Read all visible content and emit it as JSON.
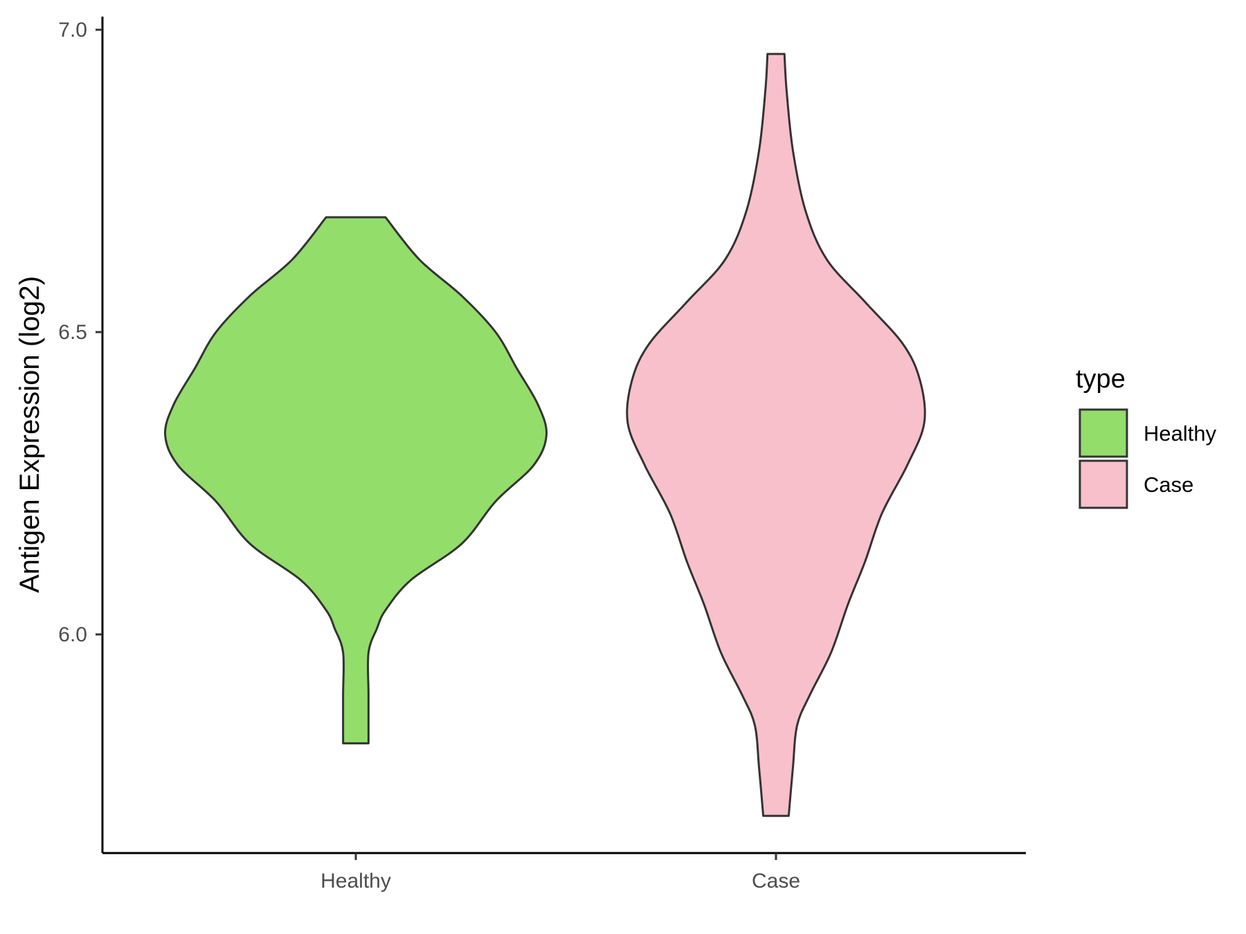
{
  "chart_data": {
    "type": "violin",
    "xlabel": "",
    "ylabel": "Antigen Expression (log2)",
    "categories": [
      "Healthy",
      "Case"
    ],
    "y_ticks": [
      "6.0",
      "6.5",
      "7.0"
    ],
    "ylim": [
      5.64,
      7.02
    ],
    "grid": false,
    "legend": {
      "title": "type",
      "position": "right",
      "entries": [
        {
          "label": "Healthy",
          "color": "#93DD6A"
        },
        {
          "label": "Case",
          "color": "#F8C0CB"
        }
      ]
    },
    "series": [
      {
        "category": "Healthy",
        "color": "#93DD6A",
        "min": 5.82,
        "max": 6.69,
        "density_profile": [
          {
            "y": 5.82,
            "half_width": 0.03
          },
          {
            "y": 5.9,
            "half_width": 0.03
          },
          {
            "y": 5.97,
            "half_width": 0.03
          },
          {
            "y": 6.01,
            "half_width": 0.05
          },
          {
            "y": 6.04,
            "half_width": 0.07
          },
          {
            "y": 6.09,
            "half_width": 0.13
          },
          {
            "y": 6.15,
            "half_width": 0.25
          },
          {
            "y": 6.22,
            "half_width": 0.33
          },
          {
            "y": 6.28,
            "half_width": 0.42
          },
          {
            "y": 6.33,
            "half_width": 0.45
          },
          {
            "y": 6.38,
            "half_width": 0.43
          },
          {
            "y": 6.44,
            "half_width": 0.38
          },
          {
            "y": 6.5,
            "half_width": 0.33
          },
          {
            "y": 6.56,
            "half_width": 0.25
          },
          {
            "y": 6.62,
            "half_width": 0.15
          },
          {
            "y": 6.69,
            "half_width": 0.07
          }
        ]
      },
      {
        "category": "Case",
        "color": "#F8C0CB",
        "min": 5.7,
        "max": 6.96,
        "density_profile": [
          {
            "y": 5.7,
            "half_width": 0.03
          },
          {
            "y": 5.78,
            "half_width": 0.04
          },
          {
            "y": 5.85,
            "half_width": 0.05
          },
          {
            "y": 5.9,
            "half_width": 0.08
          },
          {
            "y": 5.97,
            "half_width": 0.13
          },
          {
            "y": 6.05,
            "half_width": 0.17
          },
          {
            "y": 6.12,
            "half_width": 0.21
          },
          {
            "y": 6.2,
            "half_width": 0.25
          },
          {
            "y": 6.28,
            "half_width": 0.31
          },
          {
            "y": 6.35,
            "half_width": 0.35
          },
          {
            "y": 6.42,
            "half_width": 0.34
          },
          {
            "y": 6.48,
            "half_width": 0.3
          },
          {
            "y": 6.55,
            "half_width": 0.21
          },
          {
            "y": 6.62,
            "half_width": 0.12
          },
          {
            "y": 6.7,
            "half_width": 0.07
          },
          {
            "y": 6.8,
            "half_width": 0.04
          },
          {
            "y": 6.9,
            "half_width": 0.025
          },
          {
            "y": 6.96,
            "half_width": 0.02
          }
        ]
      }
    ]
  }
}
